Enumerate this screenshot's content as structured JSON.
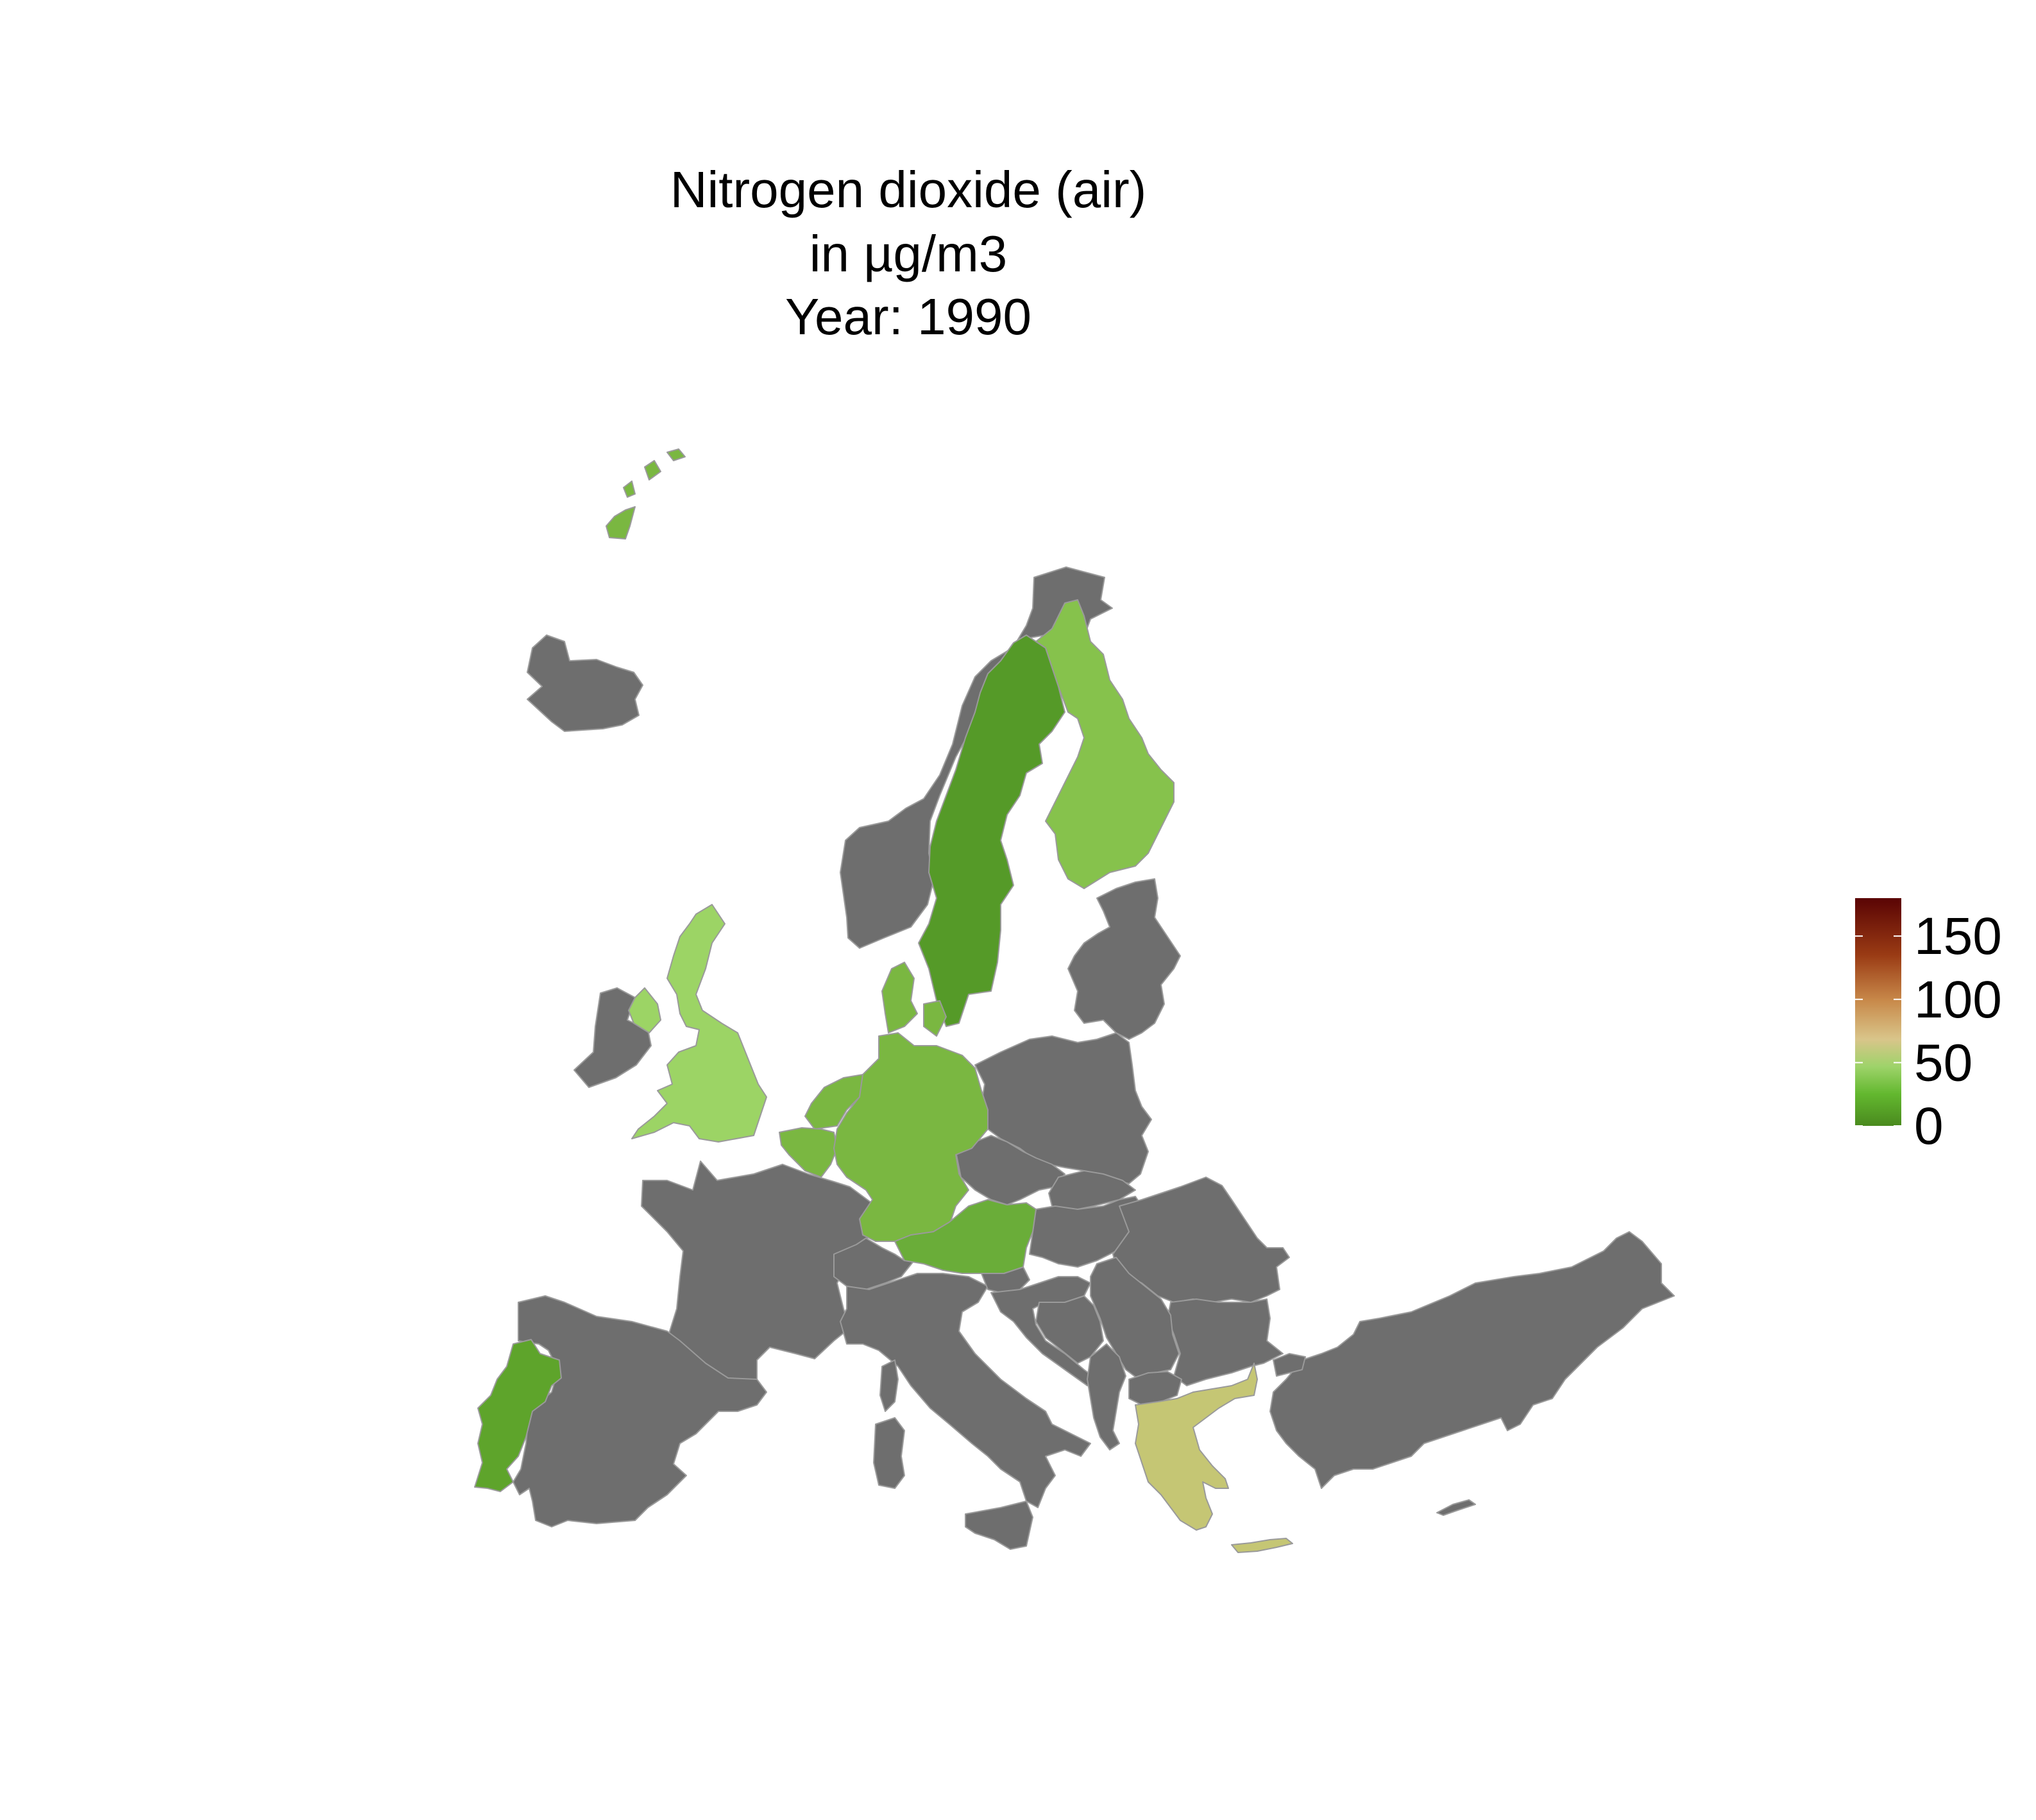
{
  "title": {
    "line1": "Nitrogen dioxide (air)",
    "line2": "in µg/m3",
    "line3": "Year: 1990"
  },
  "colors": {
    "no_data": "#6e6e6e",
    "border": "#9a9a9a",
    "scale": [
      "#4a8a1e",
      "#63b82f",
      "#9ed36a",
      "#d9c58a",
      "#c8894a",
      "#9a3b14",
      "#5a0404"
    ]
  },
  "legend": {
    "placement": "right",
    "ticks": [
      "0",
      "50",
      "100",
      "150"
    ],
    "range": [
      0,
      180
    ]
  },
  "chart_data": {
    "type": "map",
    "region": "Europe",
    "values_estimated": [
      {
        "name": "Sweden",
        "value": 8
      },
      {
        "name": "Portugal",
        "value": 12
      },
      {
        "name": "Finland",
        "value": 33
      },
      {
        "name": "Germany",
        "value": 30
      },
      {
        "name": "Netherlands",
        "value": 30
      },
      {
        "name": "Belgium",
        "value": 30
      },
      {
        "name": "Austria",
        "value": 24
      },
      {
        "name": "Denmark",
        "value": 40
      },
      {
        "name": "Northern Ireland",
        "value": 40
      },
      {
        "name": "United Kingdom",
        "value": 42
      },
      {
        "name": "Greece",
        "value": 70
      },
      {
        "name": "Crete",
        "value": 70
      },
      {
        "name": "Svalbard",
        "value": 25
      }
    ],
    "no_data_regions": [
      "Norway",
      "Iceland",
      "Ireland",
      "France",
      "Spain",
      "Italy",
      "Switzerland",
      "Poland",
      "Czechia",
      "Slovakia",
      "Hungary",
      "Romania",
      "Bulgaria",
      "Turkey",
      "Estonia",
      "Latvia",
      "Lithuania",
      "Slovenia",
      "Croatia",
      "Bosnia and Herzegovina",
      "Serbia",
      "Albania",
      "North Macedonia",
      "Sardinia",
      "Corsica",
      "Sicily",
      "Cyprus"
    ]
  }
}
